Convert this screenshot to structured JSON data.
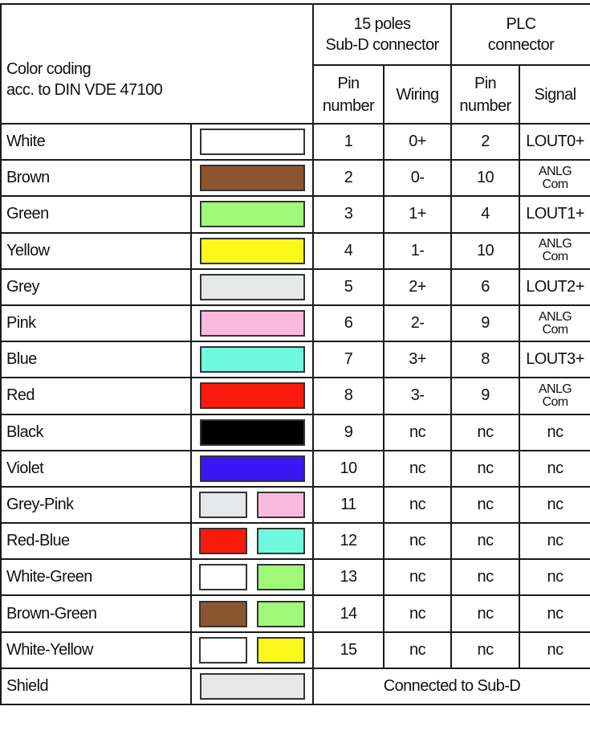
{
  "header": {
    "title_line1": "Color coding",
    "title_line2": "acc. to DIN VDE 47100",
    "subd_group_line1": "15 poles",
    "subd_group_line2": "Sub-D connector",
    "plc_group_line1": "PLC",
    "plc_group_line2": "connector",
    "pin_number_line1": "Pin",
    "pin_number_line2": "number",
    "wiring": "Wiring",
    "plc_pin_line1": "Pin",
    "plc_pin_line2": "number",
    "signal": "Signal"
  },
  "rows": [
    {
      "name": "White",
      "colors": [
        "#ffffff"
      ],
      "pin": "1",
      "wiring": "0+",
      "plc_pin": "2",
      "signal": "LOUT0+"
    },
    {
      "name": "Brown",
      "colors": [
        "#8b5530"
      ],
      "pin": "2",
      "wiring": "0-",
      "plc_pin": "10",
      "signal": "ANLG Com"
    },
    {
      "name": "Green",
      "colors": [
        "#a0f878"
      ],
      "pin": "3",
      "wiring": "1+",
      "plc_pin": "4",
      "signal": "LOUT1+"
    },
    {
      "name": "Yellow",
      "colors": [
        "#fbf91c"
      ],
      "pin": "4",
      "wiring": "1-",
      "plc_pin": "10",
      "signal": "ANLG Com"
    },
    {
      "name": "Grey",
      "colors": [
        "#e5e7e8"
      ],
      "pin": "5",
      "wiring": "2+",
      "plc_pin": "6",
      "signal": "LOUT2+"
    },
    {
      "name": "Pink",
      "colors": [
        "#fbb9dc"
      ],
      "pin": "6",
      "wiring": "2-",
      "plc_pin": "9",
      "signal": "ANLG Com"
    },
    {
      "name": "Blue",
      "colors": [
        "#6ffadd"
      ],
      "pin": "7",
      "wiring": "3+",
      "plc_pin": "8",
      "signal": "LOUT3+"
    },
    {
      "name": "Red",
      "colors": [
        "#fb1a0e"
      ],
      "pin": "8",
      "wiring": "3-",
      "plc_pin": "9",
      "signal": "ANLG Com"
    },
    {
      "name": "Black",
      "colors": [
        "#000000"
      ],
      "pin": "9",
      "wiring": "nc",
      "plc_pin": "nc",
      "signal": "nc"
    },
    {
      "name": "Violet",
      "colors": [
        "#3a16f5"
      ],
      "pin": "10",
      "wiring": "nc",
      "plc_pin": "nc",
      "signal": "nc"
    },
    {
      "name": "Grey-Pink",
      "colors": [
        "#e5e7e8",
        "#fbb9dc"
      ],
      "pin": "11",
      "wiring": "nc",
      "plc_pin": "nc",
      "signal": "nc"
    },
    {
      "name": "Red-Blue",
      "colors": [
        "#fb1a0e",
        "#6ffadd"
      ],
      "pin": "12",
      "wiring": "nc",
      "plc_pin": "nc",
      "signal": "nc"
    },
    {
      "name": "White-Green",
      "colors": [
        "#ffffff",
        "#a0f878"
      ],
      "pin": "13",
      "wiring": "nc",
      "plc_pin": "nc",
      "signal": "nc"
    },
    {
      "name": "Brown-Green",
      "colors": [
        "#8b5530",
        "#a0f878"
      ],
      "pin": "14",
      "wiring": "nc",
      "plc_pin": "nc",
      "signal": "nc"
    },
    {
      "name": "White-Yellow",
      "colors": [
        "#ffffff",
        "#fbf91c"
      ],
      "pin": "15",
      "wiring": "nc",
      "plc_pin": "nc",
      "signal": "nc"
    }
  ],
  "shield": {
    "name": "Shield",
    "colors": [
      "#e5e7e8"
    ],
    "note": "Connected to Sub-D"
  }
}
